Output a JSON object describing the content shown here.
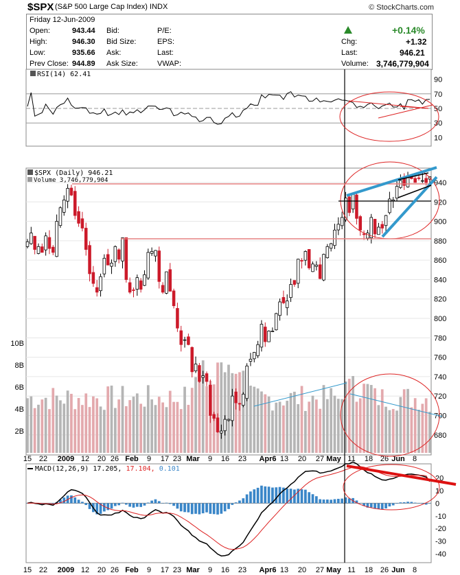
{
  "header": {
    "symbol": "$SPX",
    "name": "(S&P 500 Large Cap Index)",
    "exchange": "INDX",
    "brand": "© StockCharts.com"
  },
  "quote": {
    "date": "Friday  12-Jun-2009",
    "open_label": "Open:",
    "open": "943.44",
    "high_label": "High:",
    "high": "946.30",
    "low_label": "Low:",
    "low": "935.66",
    "prevclose_label": "Prev Close:",
    "prevclose": "944.89",
    "bid_label": "Bid:",
    "bidsize_label": "Bid Size:",
    "ask_label": "Ask:",
    "asksize_label": "Ask Size:",
    "pe_label": "P/E:",
    "eps_label": "EPS:",
    "last_label2": "Last:",
    "vwap_label": "VWAP:",
    "pct_change": "+0.14%",
    "chg_label": "Chg:",
    "chg": "+1.32",
    "last_label": "Last:",
    "last": "946.21",
    "volume_label": "Volume:",
    "volume": "3,746,779,904",
    "up_color": "#2a8a2a"
  },
  "panels": {
    "rsi_label": "RSI(14) 62.41",
    "price_label": "$SPX (Daily) 946.21",
    "volume_label": "Volume 3,746,779,904",
    "macd_label_name": "MACD(12,26,9)",
    "macd_value": "17.205,",
    "macd_signal": "17.104,",
    "macd_hist": "0.101"
  },
  "chart_data": {
    "type": "candlestick",
    "date_range": [
      "2008-12-12",
      "2009-06-12"
    ],
    "x_tick_labels": [
      "15",
      "22",
      "2009",
      "12",
      "20",
      "26",
      "Feb",
      "9",
      "17",
      "23",
      "Mar",
      "9",
      "16",
      "23",
      "Apr6",
      "13",
      "20",
      "27",
      "May",
      "11",
      "18",
      "26",
      "Jun",
      "8"
    ],
    "rsi": {
      "yaxis_ticks": [
        "90",
        "70",
        "50",
        "30",
        "10"
      ],
      "ylim": [
        0,
        100
      ],
      "reference_lines": [
        70,
        50,
        30
      ],
      "last": 62.41
    },
    "price": {
      "yaxis_ticks": [
        "940",
        "920",
        "900",
        "880",
        "860",
        "840",
        "820",
        "800",
        "780",
        "760",
        "740",
        "720",
        "700",
        "680"
      ],
      "ylim": [
        665,
        952
      ],
      "close_series": [
        879,
        888,
        871,
        874,
        868,
        885,
        872,
        868,
        900,
        914,
        922,
        934,
        927,
        906,
        898,
        893,
        871,
        846,
        836,
        827,
        843,
        862,
        855,
        857,
        874,
        861,
        883,
        840,
        827,
        829,
        842,
        830,
        845,
        868,
        869,
        870,
        838,
        827,
        848,
        828,
        813,
        790,
        773,
        778,
        773,
        745,
        753,
        735,
        741,
        735,
        700,
        697,
        683,
        684,
        696,
        696,
        720,
        713,
        712,
        722,
        751,
        758,
        765,
        773,
        794,
        776,
        787,
        787,
        805,
        817,
        816,
        818,
        835,
        835,
        861,
        859,
        869,
        852,
        856,
        855,
        841,
        866,
        874,
        877,
        891,
        897,
        904,
        924,
        909,
        928,
        903,
        891,
        887,
        888,
        904,
        887,
        894,
        893,
        906,
        923,
        922,
        936,
        942,
        937,
        946,
        944,
        940,
        944,
        942,
        940,
        946
      ],
      "ohlc_last": {
        "open": 943.44,
        "high": 946.3,
        "low": 935.66,
        "close": 946.21
      }
    },
    "volume": {
      "yaxis_ticks": [
        "10B",
        "8B",
        "6B",
        "4B",
        "2B"
      ],
      "ylim_billions": [
        0,
        12
      ],
      "last": 3746779904
    },
    "macd": {
      "yaxis_ticks": [
        "20",
        "10",
        "0",
        "-10",
        "-20",
        "-30",
        "-40"
      ],
      "ylim": [
        -45,
        28
      ],
      "last": {
        "macd": 17.205,
        "signal": 17.104,
        "histogram": 0.101
      }
    }
  },
  "colors": {
    "up": "#000000",
    "down": "#cc1a2a",
    "vol_up": "#b5b5b5",
    "vol_down": "#e3a9ad",
    "macd_hist": "#3a86c8",
    "signal": "#dd2020",
    "annotation_red": "#dd2222",
    "annotation_blue": "#3399cc"
  }
}
